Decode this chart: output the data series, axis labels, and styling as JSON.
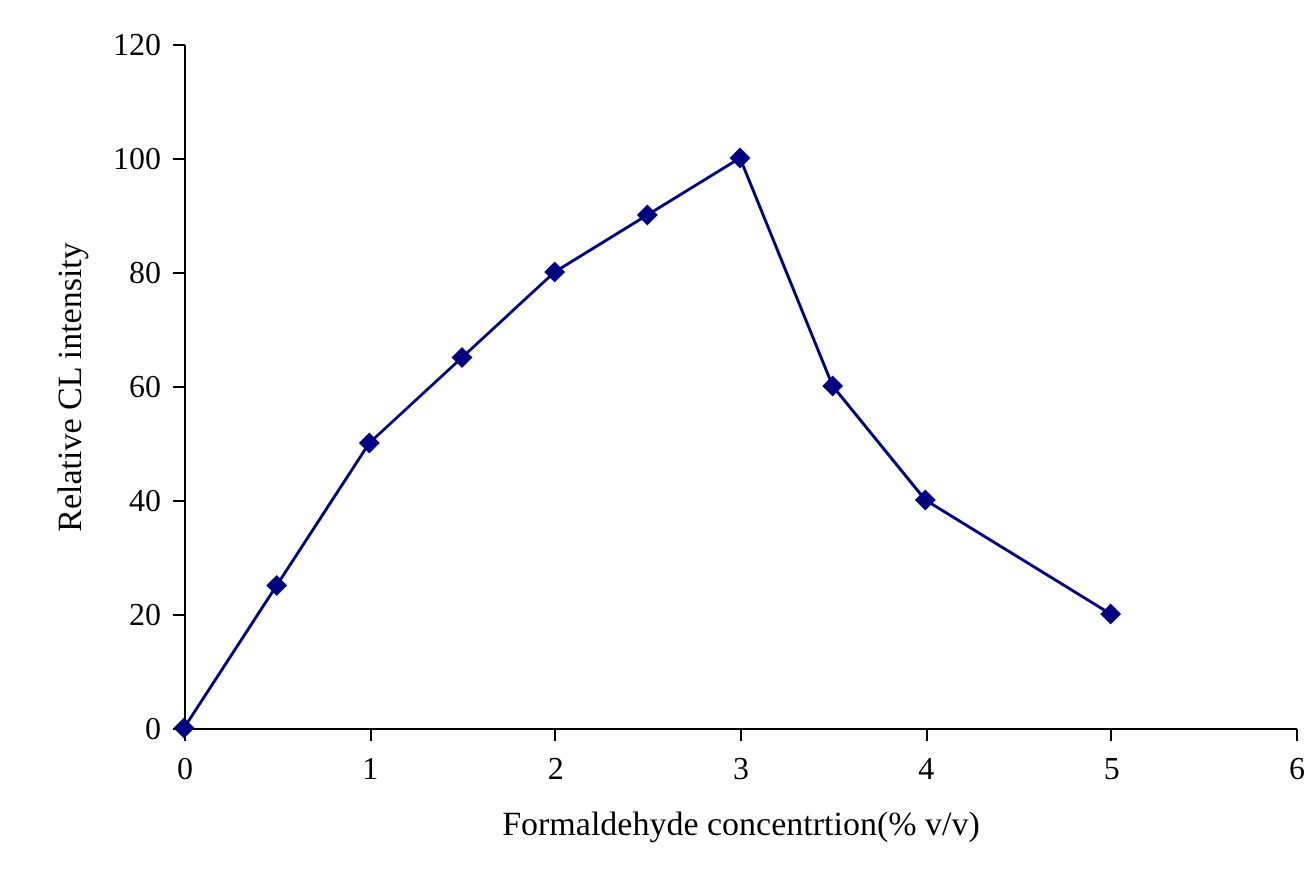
{
  "chart_data": {
    "type": "line",
    "xlabel": "Formaldehyde concentrtion(% v/v)",
    "ylabel": "Relative CL intensity",
    "x": [
      0,
      0.5,
      1,
      1.5,
      2,
      2.5,
      3,
      3.5,
      4,
      5
    ],
    "series": [
      {
        "color": "#000080",
        "values": [
          0,
          25,
          50,
          65,
          80,
          90,
          100,
          60,
          40,
          20
        ]
      }
    ],
    "xlim": [
      0,
      6
    ],
    "xticks": [
      0,
      1,
      2,
      3,
      4,
      5,
      6
    ],
    "ylim": [
      0,
      120
    ],
    "yticks": [
      0,
      20,
      40,
      60,
      80,
      100,
      120
    ],
    "grid": false,
    "marker": "diamond",
    "line_style": "solid"
  }
}
